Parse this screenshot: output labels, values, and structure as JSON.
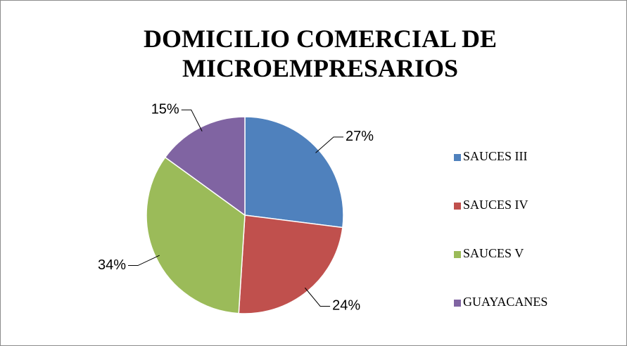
{
  "chart_data": {
    "type": "pie",
    "title": "DOMICILIO COMERCIAL DE MICROEMPRESARIOS",
    "categories": [
      "SAUCES III",
      "SAUCES IV",
      "SAUCES V",
      "GUAYACANES"
    ],
    "values": [
      27,
      24,
      34,
      15
    ],
    "value_labels": [
      "27%",
      "24%",
      "34%",
      "15%"
    ],
    "colors": [
      "#4f81bd",
      "#c0504d",
      "#9bbb59",
      "#8064a2"
    ],
    "legend": "right"
  }
}
